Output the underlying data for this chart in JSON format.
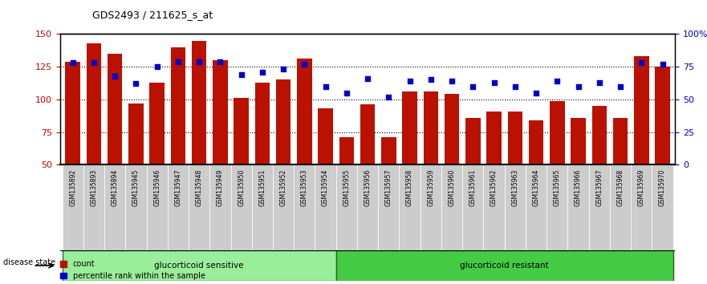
{
  "title": "GDS2493 / 211625_s_at",
  "samples": [
    "GSM135892",
    "GSM135893",
    "GSM135894",
    "GSM135945",
    "GSM135946",
    "GSM135947",
    "GSM135948",
    "GSM135949",
    "GSM135950",
    "GSM135951",
    "GSM135952",
    "GSM135953",
    "GSM135954",
    "GSM135955",
    "GSM135956",
    "GSM135957",
    "GSM135958",
    "GSM135959",
    "GSM135960",
    "GSM135961",
    "GSM135962",
    "GSM135963",
    "GSM135964",
    "GSM135965",
    "GSM135966",
    "GSM135967",
    "GSM135968",
    "GSM135969",
    "GSM135970"
  ],
  "counts": [
    129,
    143,
    135,
    97,
    113,
    140,
    145,
    130,
    101,
    113,
    115,
    131,
    93,
    71,
    96,
    71,
    106,
    106,
    104,
    86,
    91,
    91,
    84,
    99,
    86,
    95,
    86,
    133,
    125
  ],
  "percentiles": [
    78,
    78,
    68,
    62,
    75,
    79,
    79,
    79,
    69,
    71,
    73,
    77,
    60,
    55,
    66,
    52,
    64,
    65,
    64,
    60,
    63,
    60,
    55,
    64,
    60,
    63,
    60,
    78,
    77
  ],
  "sensitive_count": 13,
  "resistant_count": 16,
  "ylim_left": [
    50,
    150
  ],
  "ylim_right": [
    0,
    100
  ],
  "yticks_left": [
    50,
    75,
    100,
    125,
    150
  ],
  "yticks_right": [
    0,
    25,
    50,
    75,
    100
  ],
  "ytick_labels_right": [
    "0",
    "25",
    "50",
    "75",
    "100%"
  ],
  "bar_color": "#bb1100",
  "dot_color": "#0000cc",
  "sensitive_color": "#99ee99",
  "resistant_color": "#44cc44",
  "tick_bg_color": "#cccccc",
  "bg_color": "#ffffff",
  "tick_label_color_left": "#cc0000",
  "tick_label_color_right": "#0000cc",
  "legend_count_label": "count",
  "legend_pct_label": "percentile rank within the sample",
  "group_label": "disease state",
  "sensitive_label": "glucorticoid sensitive",
  "resistant_label": "glucorticoid resistant"
}
